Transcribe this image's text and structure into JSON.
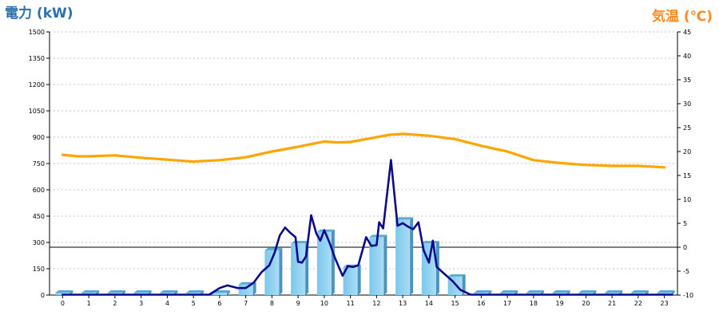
{
  "chart_data": {
    "type": "bar",
    "title_left": "電力 (kW)",
    "title_right": "気温 (℃)",
    "x": [
      "0",
      "1",
      "2",
      "3",
      "4",
      "5",
      "6",
      "7",
      "8",
      "9",
      "10",
      "11",
      "12",
      "13",
      "14",
      "15",
      "16",
      "17",
      "18",
      "19",
      "20",
      "21",
      "22",
      "23"
    ],
    "y_left": {
      "min": 0,
      "max": 1500,
      "ticks": [
        "0",
        "150",
        "300",
        "450",
        "600",
        "750",
        "900",
        "1050",
        "1200",
        "1350",
        "1500"
      ]
    },
    "y_right": {
      "min": -10,
      "max": 45,
      "ticks": [
        "-10",
        "-5",
        "0",
        "5",
        "10",
        "15",
        "20",
        "25",
        "30",
        "35",
        "40",
        "45"
      ]
    },
    "grid": true,
    "bars": {
      "name": "",
      "axis": "left",
      "values": [
        0,
        0,
        0,
        0,
        0,
        0,
        0,
        60,
        255,
        295,
        360,
        160,
        330,
        430,
        295,
        105,
        0,
        0,
        0,
        0,
        0,
        0,
        0,
        0
      ],
      "color": "#8dcff0"
    },
    "power_line": {
      "axis": "left",
      "color": "#0a0a8c",
      "points": [
        [
          0,
          0
        ],
        [
          1,
          0
        ],
        [
          2,
          0
        ],
        [
          3,
          0
        ],
        [
          4,
          0
        ],
        [
          5,
          0
        ],
        [
          5.6,
          0
        ],
        [
          6,
          40
        ],
        [
          6.3,
          55
        ],
        [
          6.7,
          40
        ],
        [
          7,
          40
        ],
        [
          7.3,
          70
        ],
        [
          7.6,
          130
        ],
        [
          7.9,
          170
        ],
        [
          8.1,
          240
        ],
        [
          8.3,
          340
        ],
        [
          8.5,
          385
        ],
        [
          8.7,
          355
        ],
        [
          8.9,
          330
        ],
        [
          9,
          190
        ],
        [
          9.15,
          185
        ],
        [
          9.3,
          220
        ],
        [
          9.5,
          455
        ],
        [
          9.7,
          350
        ],
        [
          9.85,
          310
        ],
        [
          10,
          370
        ],
        [
          10.2,
          300
        ],
        [
          10.4,
          215
        ],
        [
          10.7,
          110
        ],
        [
          10.9,
          165
        ],
        [
          11.1,
          160
        ],
        [
          11.3,
          170
        ],
        [
          11.6,
          330
        ],
        [
          11.8,
          280
        ],
        [
          12,
          285
        ],
        [
          12.1,
          415
        ],
        [
          12.25,
          380
        ],
        [
          12.55,
          770
        ],
        [
          12.8,
          395
        ],
        [
          13,
          410
        ],
        [
          13.2,
          390
        ],
        [
          13.4,
          375
        ],
        [
          13.6,
          415
        ],
        [
          13.8,
          255
        ],
        [
          14,
          185
        ],
        [
          14.15,
          310
        ],
        [
          14.3,
          160
        ],
        [
          14.6,
          120
        ],
        [
          14.9,
          80
        ],
        [
          15.2,
          30
        ],
        [
          15.6,
          0
        ],
        [
          16,
          0
        ],
        [
          17,
          0
        ],
        [
          18,
          0
        ],
        [
          19,
          0
        ],
        [
          20,
          0
        ],
        [
          21,
          0
        ],
        [
          22,
          0
        ],
        [
          23,
          0
        ],
        [
          23.3,
          0
        ]
      ]
    },
    "temp_line": {
      "axis": "right",
      "color": "#ffa500",
      "x": [
        0,
        0.6,
        1,
        2,
        3,
        4,
        5,
        6,
        7,
        8,
        9,
        10,
        10.5,
        11,
        12,
        12.5,
        13,
        14,
        15,
        16,
        17,
        18,
        19,
        20,
        21,
        22,
        23
      ],
      "values": [
        19.3,
        19,
        19,
        19.2,
        18.7,
        18.3,
        17.9,
        18.2,
        18.8,
        20,
        21,
        22.1,
        21.9,
        22,
        23,
        23.5,
        23.7,
        23.3,
        22.6,
        21.2,
        20,
        18.2,
        17.6,
        17.2,
        17,
        17,
        16.7
      ]
    },
    "reference_line_value": 0
  }
}
